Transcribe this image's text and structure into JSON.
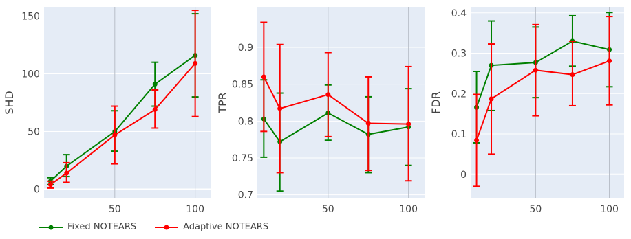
{
  "chart_data": [
    {
      "type": "line",
      "title": "",
      "xlabel": "",
      "ylabel": "SHD",
      "xlim": [
        6,
        110
      ],
      "ylim": [
        -8,
        158
      ],
      "xticks": [
        50,
        100
      ],
      "yticks": [
        0,
        50,
        100,
        150
      ],
      "xtick_labels": [
        "50",
        "100"
      ],
      "ytick_labels": [
        "0",
        "50",
        "100",
        "150"
      ],
      "grid": true,
      "series": [
        {
          "name": "Fixed NOTEARS",
          "color": "#008000",
          "x": [
            10,
            20,
            50,
            75,
            100
          ],
          "y": [
            7,
            20,
            50,
            91,
            116
          ],
          "err_low": [
            4,
            11,
            33,
            72,
            80
          ],
          "err_high": [
            10,
            30,
            68,
            110,
            152
          ]
        },
        {
          "name": "Adaptive NOTEARS",
          "color": "#ff0000",
          "x": [
            10,
            20,
            50,
            75,
            100
          ],
          "y": [
            4,
            14,
            47,
            69,
            109
          ],
          "err_low": [
            1,
            6,
            22,
            53,
            63
          ],
          "err_high": [
            7,
            23,
            72,
            86,
            155
          ]
        }
      ]
    },
    {
      "type": "line",
      "title": "",
      "xlabel": "",
      "ylabel": "TPR",
      "xlim": [
        6,
        110
      ],
      "ylim": [
        0.695,
        0.955
      ],
      "xticks": [
        50,
        100
      ],
      "yticks": [
        0.7,
        0.75,
        0.8,
        0.85,
        0.9
      ],
      "xtick_labels": [
        "50",
        "100"
      ],
      "ytick_labels": [
        "0.7",
        "0.75",
        "0.8",
        "0.85",
        "0.9"
      ],
      "grid": true,
      "series": [
        {
          "name": "Fixed NOTEARS",
          "color": "#008000",
          "x": [
            10,
            20,
            50,
            75,
            100
          ],
          "y": [
            0.803,
            0.772,
            0.811,
            0.782,
            0.792
          ],
          "err_low": [
            0.751,
            0.705,
            0.774,
            0.73,
            0.74
          ],
          "err_high": [
            0.856,
            0.838,
            0.849,
            0.833,
            0.844
          ]
        },
        {
          "name": "Adaptive NOTEARS",
          "color": "#ff0000",
          "x": [
            10,
            20,
            50,
            75,
            100
          ],
          "y": [
            0.86,
            0.817,
            0.836,
            0.797,
            0.796
          ],
          "err_low": [
            0.786,
            0.73,
            0.779,
            0.733,
            0.719
          ],
          "err_high": [
            0.934,
            0.904,
            0.893,
            0.86,
            0.874
          ]
        }
      ]
    },
    {
      "type": "line",
      "title": "",
      "xlabel": "",
      "ylabel": "FDR",
      "xlim": [
        6,
        110
      ],
      "ylim": [
        -0.06,
        0.415
      ],
      "xticks": [
        50,
        100
      ],
      "yticks": [
        0,
        0.1,
        0.2,
        0.3,
        0.4
      ],
      "xtick_labels": [
        "50",
        "100"
      ],
      "ytick_labels": [
        "0",
        "0.1",
        "0.2",
        "0.3",
        "0.4"
      ],
      "grid": true,
      "series": [
        {
          "name": "Fixed NOTEARS",
          "color": "#008000",
          "x": [
            10,
            20,
            50,
            75,
            100
          ],
          "y": [
            0.166,
            0.27,
            0.277,
            0.33,
            0.309
          ],
          "err_low": [
            0.078,
            0.158,
            0.19,
            0.268,
            0.217
          ],
          "err_high": [
            0.255,
            0.38,
            0.365,
            0.393,
            0.401
          ]
        },
        {
          "name": "Adaptive NOTEARS",
          "color": "#ff0000",
          "x": [
            10,
            20,
            50,
            75,
            100
          ],
          "y": [
            0.084,
            0.187,
            0.258,
            0.247,
            0.281
          ],
          "err_low": [
            -0.03,
            0.05,
            0.145,
            0.17,
            0.172
          ],
          "err_high": [
            0.198,
            0.323,
            0.371,
            0.33,
            0.391
          ]
        }
      ]
    }
  ],
  "legend": {
    "placement": "bottom-left",
    "items": [
      {
        "label": "Fixed NOTEARS",
        "color": "#008000"
      },
      {
        "label": "Adaptive NOTEARS",
        "color": "#ff0000"
      }
    ]
  }
}
